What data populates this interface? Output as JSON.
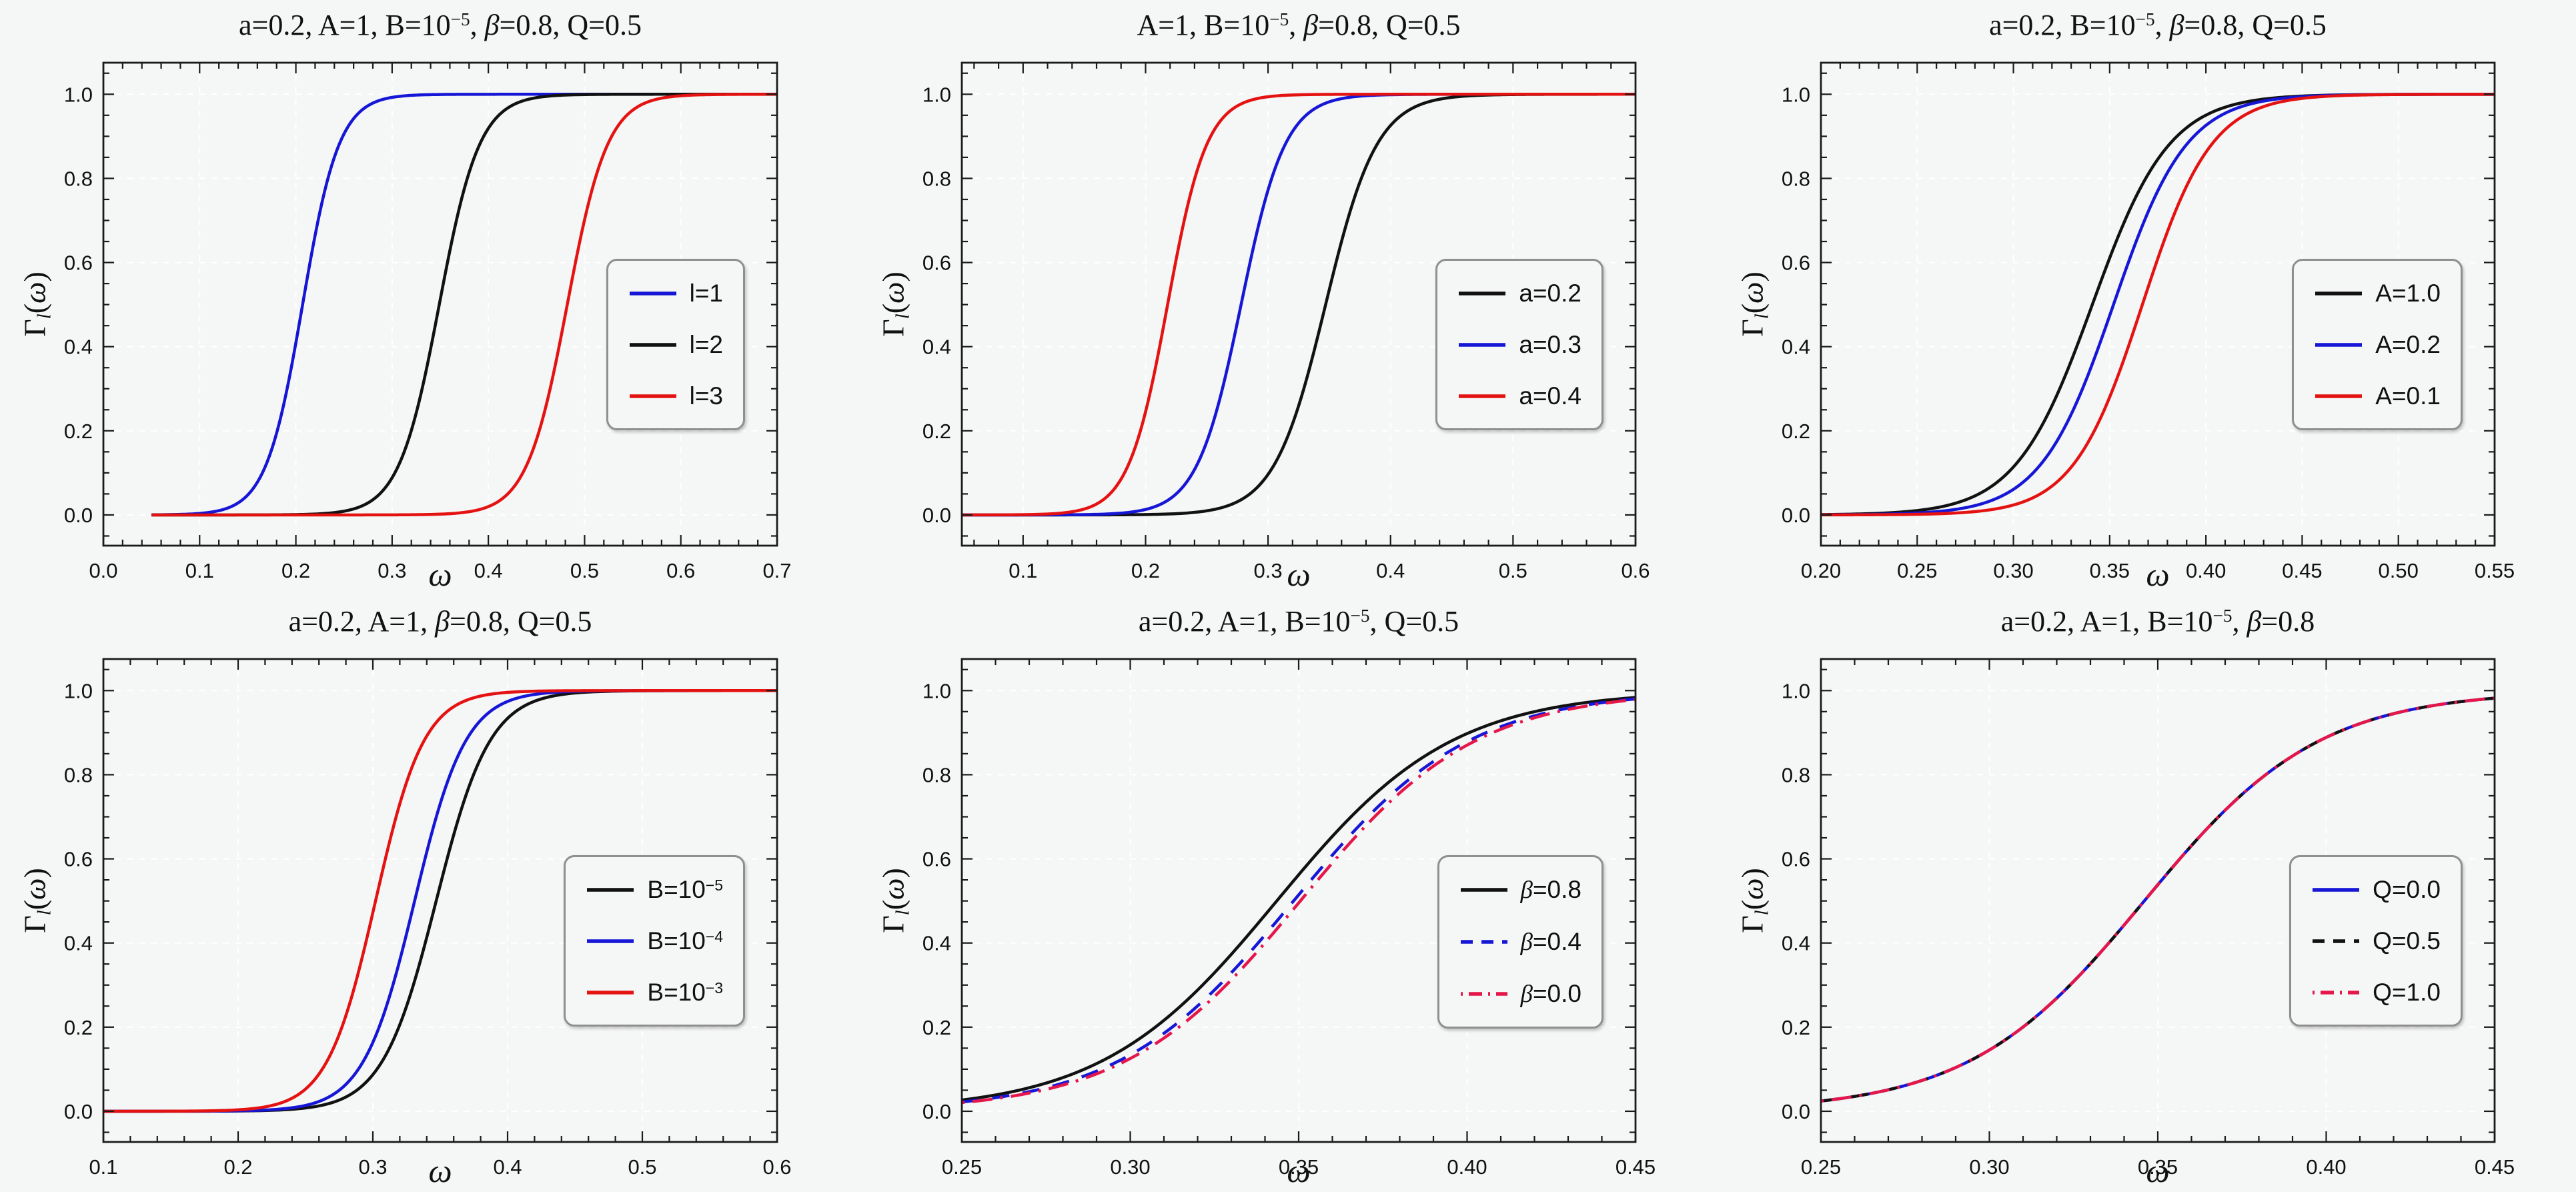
{
  "figure": {
    "rows": 2,
    "cols": 3,
    "background": "#f5f6f6"
  },
  "style": {
    "frame_color": "#1a1a1a",
    "grid_color": "#ffffff",
    "text_color": "#111111",
    "legend_border_color": "#8f8f8f",
    "curve_width": 4.5
  },
  "shared": {
    "xlabel_parts": [
      {
        "t": "ω",
        "i": true
      }
    ],
    "ylabel_parts": [
      {
        "t": "Γ"
      },
      {
        "t": "l",
        "sub": true,
        "i": true
      },
      {
        "t": "("
      },
      {
        "t": "ω",
        "i": true
      },
      {
        "t": ")"
      }
    ],
    "y_axis": {
      "lim": [
        -0.073,
        1.075
      ],
      "tick_values": [
        0.0,
        0.2,
        0.4,
        0.6,
        0.8,
        1.0
      ],
      "tick_labels": [
        "0.0",
        "0.2",
        "0.4",
        "0.6",
        "0.8",
        "1.0"
      ],
      "minor_step": 0.05,
      "grid": true
    },
    "curve_model": "logistic: y = 1/(1+exp(-(x-x0)/s)), y rises from 0 to 1 around x0"
  },
  "chart_data": [
    {
      "type": "line",
      "title_parts": [
        {
          "t": "a=0.2, A=1, B=10"
        },
        {
          "t": "−5",
          "sup": true
        },
        {
          "t": ", "
        },
        {
          "t": "β",
          "i": true
        },
        {
          "t": "=0.8, Q=0.5"
        }
      ],
      "xlim": [
        0.0,
        0.7
      ],
      "xstart": 0.05,
      "xtick_values": [
        0.0,
        0.1,
        0.2,
        0.3,
        0.4,
        0.5,
        0.6,
        0.7
      ],
      "xtick_labels": [
        "0.0",
        "0.1",
        "0.2",
        "0.3",
        "0.4",
        "0.5",
        "0.6",
        "0.7"
      ],
      "x_minor_step": 0.02,
      "series": [
        {
          "name": "l=1",
          "label_parts": [
            {
              "t": "l=1"
            }
          ],
          "color": "#1616d6",
          "dash": "solid",
          "x0": 0.207,
          "s": 0.019
        },
        {
          "name": "l=2",
          "label_parts": [
            {
              "t": "l=2"
            }
          ],
          "color": "#111111",
          "dash": "solid",
          "x0": 0.349,
          "s": 0.021
        },
        {
          "name": "l=3",
          "label_parts": [
            {
              "t": "l=3"
            }
          ],
          "color": "#e51212",
          "dash": "solid",
          "x0": 0.482,
          "s": 0.021
        }
      ]
    },
    {
      "type": "line",
      "title_parts": [
        {
          "t": "A=1, B=10"
        },
        {
          "t": "−5",
          "sup": true
        },
        {
          "t": ", "
        },
        {
          "t": "β",
          "i": true
        },
        {
          "t": "=0.8, Q=0.5"
        }
      ],
      "xlim": [
        0.05,
        0.6
      ],
      "xtick_values": [
        0.1,
        0.2,
        0.3,
        0.4,
        0.5,
        0.6
      ],
      "xtick_labels": [
        "0.1",
        "0.2",
        "0.3",
        "0.4",
        "0.5",
        "0.6"
      ],
      "x_minor_step": 0.02,
      "series": [
        {
          "name": "a=0.2",
          "label_parts": [
            {
              "t": "a=0.2"
            }
          ],
          "color": "#111111",
          "dash": "solid",
          "x0": 0.347,
          "s": 0.021
        },
        {
          "name": "a=0.3",
          "label_parts": [
            {
              "t": "a=0.3"
            }
          ],
          "color": "#1616d6",
          "dash": "solid",
          "x0": 0.278,
          "s": 0.018
        },
        {
          "name": "a=0.4",
          "label_parts": [
            {
              "t": "a=0.4"
            }
          ],
          "color": "#e51212",
          "dash": "solid",
          "x0": 0.218,
          "s": 0.016
        }
      ]
    },
    {
      "type": "line",
      "title_parts": [
        {
          "t": "a=0.2, B=10"
        },
        {
          "t": "−5",
          "sup": true
        },
        {
          "t": ", "
        },
        {
          "t": "β",
          "i": true
        },
        {
          "t": "=0.8, Q=0.5"
        }
      ],
      "xlim": [
        0.2,
        0.55
      ],
      "xtick_values": [
        0.2,
        0.25,
        0.3,
        0.35,
        0.4,
        0.45,
        0.5,
        0.55
      ],
      "xtick_labels": [
        "0.20",
        "0.25",
        "0.30",
        "0.35",
        "0.40",
        "0.45",
        "0.50",
        "0.55"
      ],
      "x_minor_step": 0.01,
      "series": [
        {
          "name": "A=1.0",
          "label_parts": [
            {
              "t": "A=1.0"
            }
          ],
          "color": "#111111",
          "dash": "solid",
          "x0": 0.341,
          "s": 0.02
        },
        {
          "name": "A=0.2",
          "label_parts": [
            {
              "t": "A=0.2"
            }
          ],
          "color": "#1616d6",
          "dash": "solid",
          "x0": 0.352,
          "s": 0.019
        },
        {
          "name": "A=0.1",
          "label_parts": [
            {
              "t": "A=0.1"
            }
          ],
          "color": "#e51212",
          "dash": "solid",
          "x0": 0.367,
          "s": 0.018
        }
      ]
    },
    {
      "type": "line",
      "title_parts": [
        {
          "t": "a=0.2, A=1, "
        },
        {
          "t": "β",
          "i": true
        },
        {
          "t": "=0.8, Q=0.5"
        }
      ],
      "xlim": [
        0.1,
        0.6
      ],
      "xtick_values": [
        0.1,
        0.2,
        0.3,
        0.4,
        0.5,
        0.6
      ],
      "xtick_labels": [
        "0.1",
        "0.2",
        "0.3",
        "0.4",
        "0.5",
        "0.6"
      ],
      "x_minor_step": 0.02,
      "series": [
        {
          "name": "B=10^-5",
          "label_parts": [
            {
              "t": "B=10"
            },
            {
              "t": "−5",
              "sup": true
            }
          ],
          "color": "#111111",
          "dash": "solid",
          "x0": 0.347,
          "s": 0.02
        },
        {
          "name": "B=10^-4",
          "label_parts": [
            {
              "t": "B=10"
            },
            {
              "t": "−4",
              "sup": true
            }
          ],
          "color": "#1616d6",
          "dash": "solid",
          "x0": 0.331,
          "s": 0.019
        },
        {
          "name": "B=10^-3",
          "label_parts": [
            {
              "t": "B=10"
            },
            {
              "t": "−3",
              "sup": true
            }
          ],
          "color": "#e51212",
          "dash": "solid",
          "x0": 0.302,
          "s": 0.018
        }
      ]
    },
    {
      "type": "line",
      "title_parts": [
        {
          "t": "a=0.2, A=1, B=10"
        },
        {
          "t": "−5",
          "sup": true
        },
        {
          "t": ", Q=0.5"
        }
      ],
      "xlim": [
        0.25,
        0.45
      ],
      "xtick_values": [
        0.25,
        0.3,
        0.35,
        0.4,
        0.45
      ],
      "xtick_labels": [
        "0.25",
        "0.30",
        "0.35",
        "0.40",
        "0.45"
      ],
      "x_minor_step": 0.01,
      "series": [
        {
          "name": "β=0.8",
          "label_parts": [
            {
              "t": "β",
              "i": true
            },
            {
              "t": "=0.8"
            }
          ],
          "color": "#111111",
          "dash": "solid",
          "x0": 0.3435,
          "s": 0.026
        },
        {
          "name": "β=0.4",
          "label_parts": [
            {
              "t": "β",
              "i": true
            },
            {
              "t": "=0.4"
            }
          ],
          "color": "#1616d6",
          "dash": "dashed",
          "x0": 0.3485,
          "s": 0.026
        },
        {
          "name": "β=0.0",
          "label_parts": [
            {
              "t": "β",
              "i": true
            },
            {
              "t": "=0.0"
            }
          ],
          "color": "#e5164a",
          "dash": "dashdot",
          "x0": 0.3505,
          "s": 0.026
        }
      ]
    },
    {
      "type": "line",
      "title_parts": [
        {
          "t": "a=0.2, A=1, B=10"
        },
        {
          "t": "−5",
          "sup": true
        },
        {
          "t": ", "
        },
        {
          "t": "β",
          "i": true
        },
        {
          "t": "=0.8"
        }
      ],
      "xlim": [
        0.25,
        0.45
      ],
      "xtick_values": [
        0.25,
        0.3,
        0.35,
        0.4,
        0.45
      ],
      "xtick_labels": [
        "0.25",
        "0.30",
        "0.35",
        "0.40",
        "0.45"
      ],
      "x_minor_step": 0.01,
      "series": [
        {
          "name": "Q=0.0",
          "label_parts": [
            {
              "t": "Q=0.0"
            }
          ],
          "color": "#1616d6",
          "dash": "solid",
          "x0": 0.346,
          "s": 0.026
        },
        {
          "name": "Q=0.5",
          "label_parts": [
            {
              "t": "Q=0.5"
            }
          ],
          "color": "#111111",
          "dash": "dashed",
          "x0": 0.346,
          "s": 0.026
        },
        {
          "name": "Q=1.0",
          "label_parts": [
            {
              "t": "Q=1.0"
            }
          ],
          "color": "#e5164a",
          "dash": "dashdot",
          "x0": 0.346,
          "s": 0.026
        }
      ]
    }
  ]
}
